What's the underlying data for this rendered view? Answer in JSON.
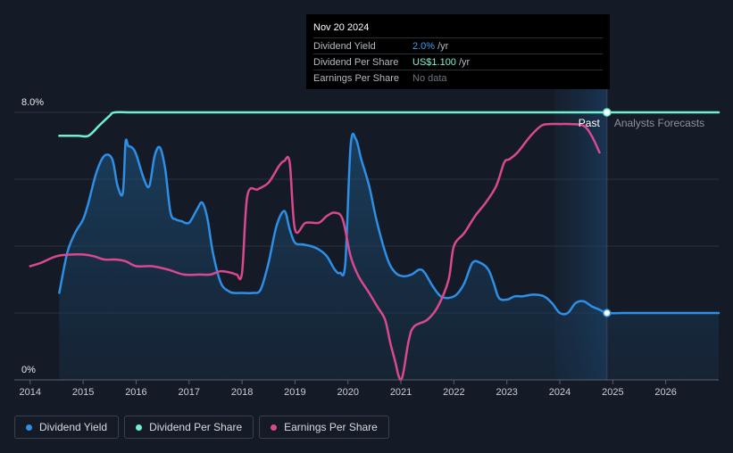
{
  "tooltip": {
    "date": "Nov 20 2024",
    "rows": [
      {
        "label": "Dividend Yield",
        "value": "2.0%",
        "unit": "/yr"
      },
      {
        "label": "Dividend Per Share",
        "value": "US$1.100",
        "unit": "/yr"
      },
      {
        "label": "Earnings Per Share",
        "value": "No data",
        "unit": ""
      }
    ]
  },
  "labels": {
    "past": "Past",
    "forecast": "Analysts Forecasts"
  },
  "legend": [
    {
      "label": "Dividend Yield",
      "color": "#2e8fe6"
    },
    {
      "label": "Dividend Per Share",
      "color": "#6ff0d0"
    },
    {
      "label": "Earnings Per Share",
      "color": "#d9498f"
    }
  ],
  "chart_data": {
    "type": "line",
    "x_ticks": [
      "2014",
      "2015",
      "2016",
      "2017",
      "2018",
      "2019",
      "2020",
      "2021",
      "2022",
      "2023",
      "2024",
      "2025",
      "2026"
    ],
    "xlim": [
      2013.7,
      2027.0
    ],
    "ylim": [
      0,
      8.0
    ],
    "y_tick_labels": [
      "0%",
      "8.0%"
    ],
    "grid": true,
    "past_until": 2024.89,
    "forecast_band_start": 2023.9,
    "series": [
      {
        "name": "Dividend Yield",
        "color": "#2e8fe6",
        "area": true,
        "x": [
          2014.55,
          2014.7,
          2014.85,
          2015.0,
          2015.1,
          2015.25,
          2015.4,
          2015.55,
          2015.65,
          2015.75,
          2015.8,
          2015.85,
          2015.92,
          2016.0,
          2016.15,
          2016.25,
          2016.35,
          2016.45,
          2016.55,
          2016.65,
          2016.75,
          2016.85,
          2017.0,
          2017.15,
          2017.25,
          2017.35,
          2017.45,
          2017.6,
          2017.75,
          2017.85,
          2018.0,
          2018.2,
          2018.35,
          2018.5,
          2018.65,
          2018.8,
          2018.9,
          2019.0,
          2019.15,
          2019.3,
          2019.45,
          2019.6,
          2019.75,
          2019.85,
          2019.95,
          2020.05,
          2020.15,
          2020.25,
          2020.4,
          2020.55,
          2020.75,
          2020.9,
          2021.05,
          2021.2,
          2021.35,
          2021.45,
          2021.6,
          2021.75,
          2021.9,
          2022.05,
          2022.2,
          2022.35,
          2022.5,
          2022.65,
          2022.75,
          2022.85,
          2023.0,
          2023.15,
          2023.3,
          2023.5,
          2023.7,
          2023.85,
          2024.0,
          2024.15,
          2024.3,
          2024.45,
          2024.6,
          2024.75,
          2024.89,
          2025.2,
          2025.6,
          2026.0,
          2026.5,
          2027.0
        ],
        "y": [
          2.6,
          3.8,
          4.4,
          4.8,
          5.3,
          6.2,
          6.7,
          6.6,
          5.8,
          5.6,
          7.1,
          7.0,
          6.95,
          6.75,
          6.0,
          5.8,
          6.7,
          6.95,
          6.3,
          5.0,
          4.8,
          4.75,
          4.7,
          5.1,
          5.3,
          4.8,
          3.8,
          2.9,
          2.65,
          2.6,
          2.6,
          2.6,
          2.7,
          3.5,
          4.6,
          5.05,
          4.5,
          4.1,
          4.05,
          4.0,
          3.9,
          3.7,
          3.3,
          3.2,
          3.5,
          7.0,
          7.2,
          6.6,
          5.8,
          4.7,
          3.6,
          3.2,
          3.1,
          3.15,
          3.3,
          3.2,
          2.8,
          2.5,
          2.45,
          2.55,
          2.9,
          3.5,
          3.5,
          3.3,
          2.9,
          2.45,
          2.4,
          2.5,
          2.5,
          2.55,
          2.5,
          2.3,
          2.0,
          2.0,
          2.3,
          2.35,
          2.2,
          2.1,
          2.0,
          2.0,
          2.0,
          2.0,
          2.0,
          2.0
        ]
      },
      {
        "name": "Dividend Per Share",
        "color": "#6ff0d0",
        "area": false,
        "x": [
          2014.55,
          2014.9,
          2015.1,
          2015.3,
          2015.5,
          2015.6,
          2016.0,
          2017.0,
          2018.0,
          2019.0,
          2020.0,
          2021.0,
          2022.0,
          2023.0,
          2024.0,
          2024.89,
          2025.5,
          2026.5,
          2027.0
        ],
        "y": [
          7.3,
          7.3,
          7.3,
          7.6,
          7.9,
          8.0,
          8.0,
          8.0,
          8.0,
          8.0,
          8.0,
          8.0,
          8.0,
          8.0,
          8.0,
          8.0,
          8.0,
          8.0,
          8.0
        ]
      },
      {
        "name": "Earnings Per Share",
        "color": "#d9498f",
        "area": false,
        "x": [
          2014.0,
          2014.2,
          2014.5,
          2014.8,
          2015.0,
          2015.2,
          2015.4,
          2015.6,
          2015.8,
          2016.0,
          2016.3,
          2016.6,
          2016.9,
          2017.2,
          2017.4,
          2017.6,
          2017.8,
          2017.9,
          2018.0,
          2018.1,
          2018.3,
          2018.5,
          2018.7,
          2018.8,
          2018.9,
          2019.0,
          2019.2,
          2019.45,
          2019.6,
          2019.75,
          2019.9,
          2020.05,
          2020.2,
          2020.4,
          2020.55,
          2020.7,
          2020.8,
          2020.9,
          2020.95,
          2021.0,
          2021.05,
          2021.15,
          2021.25,
          2021.5,
          2021.7,
          2021.9,
          2022.0,
          2022.2,
          2022.4,
          2022.6,
          2022.8,
          2022.95,
          2023.05,
          2023.2,
          2023.45,
          2023.65,
          2023.8,
          2024.0,
          2024.2,
          2024.45,
          2024.6,
          2024.75
        ],
        "y": [
          3.4,
          3.5,
          3.7,
          3.75,
          3.75,
          3.7,
          3.6,
          3.6,
          3.55,
          3.4,
          3.4,
          3.3,
          3.15,
          3.15,
          3.15,
          3.25,
          3.2,
          3.15,
          3.2,
          5.5,
          5.7,
          5.9,
          6.4,
          6.55,
          6.5,
          4.5,
          4.7,
          4.7,
          4.9,
          5.0,
          4.8,
          3.7,
          3.1,
          2.6,
          2.2,
          1.8,
          1.1,
          0.5,
          0.15,
          0.0,
          0.25,
          1.2,
          1.6,
          1.8,
          2.2,
          3.0,
          4.0,
          4.4,
          4.9,
          5.3,
          5.8,
          6.5,
          6.6,
          6.8,
          7.3,
          7.6,
          7.65,
          7.65,
          7.65,
          7.6,
          7.3,
          6.8
        ]
      }
    ]
  }
}
